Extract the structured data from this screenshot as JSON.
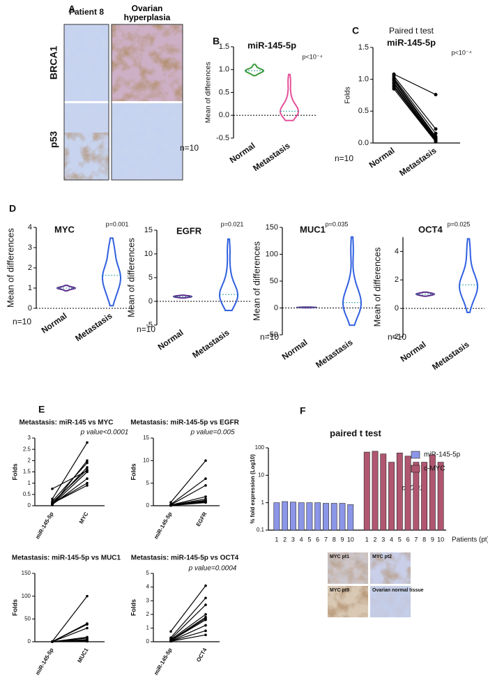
{
  "panel_a": {
    "label": "A",
    "columns": [
      "Patient 8",
      "Ovarian hyperplasia"
    ],
    "rows": [
      "BRCA1",
      "p53"
    ]
  },
  "chart_data": [
    {
      "type": "violin",
      "panel": "B",
      "title": "miR-145-5p",
      "annotation": "p<10⁻⁴",
      "note": "n=10",
      "ylabel": "Mean of differences",
      "categories": [
        "Normal",
        "Metastasis"
      ],
      "colors": [
        "#3a9a3a",
        "#e5509a"
      ],
      "values": [
        [
          0.9,
          0.93,
          0.95,
          0.96,
          0.97,
          0.98,
          0.99,
          1.0,
          1.02,
          1.08
        ],
        [
          0.75,
          0.4,
          0.2,
          0.12,
          0.1,
          0.08,
          0.06,
          0.05,
          0.04,
          0.03
        ]
      ],
      "ylim": [
        -0.5,
        1.5
      ],
      "yticks": [
        -0.5,
        {
          "value": 0,
          "label": "0.0"
        },
        0.5,
        {
          "value": 1,
          "label": "1.0"
        },
        1.5
      ],
      "reference_line": 0
    },
    {
      "type": "paired",
      "panel": "C",
      "subtitle": "Paired t test",
      "title": "miR-145-5p",
      "annotation": "p<10⁻⁴",
      "note": "n=10",
      "ylabel": "Folds",
      "categories": [
        "Normal",
        "Metastasis"
      ],
      "color": "#000000",
      "values": [
        [
          1.08,
          1.05,
          1.02,
          1.0,
          0.98,
          0.95,
          0.93,
          0.9,
          0.88,
          0.85
        ],
        [
          0.76,
          0.22,
          0.15,
          0.1,
          0.08,
          0.06,
          0.05,
          0.04,
          0.03,
          0.02
        ]
      ],
      "ylim": [
        0,
        1.5
      ],
      "yticks": [
        {
          "value": 0,
          "label": "0.0"
        },
        0.5,
        {
          "value": 1,
          "label": "1.0"
        },
        1.5
      ]
    },
    {
      "type": "violin",
      "panel": "D",
      "title": "MYC",
      "annotation": "p=0.001",
      "note": "n=10",
      "ylabel": "Mean of differences",
      "categories": [
        "Normal",
        "Metastasis"
      ],
      "colors": [
        "#5a2a8a",
        "#2f5fe0"
      ],
      "values": [
        [
          0.9,
          0.95,
          0.97,
          0.98,
          1.0,
          1.0,
          1.02,
          1.03,
          1.05,
          1.1
        ],
        [
          0.6,
          0.9,
          1.1,
          1.4,
          1.6,
          1.65,
          1.7,
          2.0,
          2.6,
          3.0
        ]
      ],
      "ylim": [
        0,
        4
      ],
      "yticks": [
        0,
        1,
        2,
        3,
        4
      ],
      "reference_line": 0
    },
    {
      "type": "violin",
      "title": "EGFR",
      "annotation": "p=0.021",
      "note": "n=10",
      "ylabel": "Mean of differences",
      "categories": [
        "Normal",
        "Metastasis"
      ],
      "colors": [
        "#5a2a8a",
        "#2f5fe0"
      ],
      "values": [
        [
          0.8,
          0.85,
          0.9,
          0.95,
          1.0,
          1.0,
          1.05,
          1.1,
          1.15,
          1.2
        ],
        [
          0.2,
          0.5,
          0.8,
          1.0,
          1.3,
          1.6,
          2.0,
          3.0,
          6.0,
          11.0
        ]
      ],
      "ylim": [
        -5,
        15
      ],
      "yticks": [
        -5,
        0,
        5,
        10,
        15
      ],
      "reference_line": 0
    },
    {
      "type": "violin",
      "title": "MUC1",
      "annotation": "p=0.035",
      "note": "n=10",
      "ylabel": "Mean of differences",
      "categories": [
        "Normal",
        "Metastasis"
      ],
      "colors": [
        "#5a2a8a",
        "#2f5fe0"
      ],
      "values": [
        [
          0.5,
          0.6,
          0.8,
          0.9,
          1.0,
          1.0,
          1.1,
          1.2,
          1.4,
          1.5
        ],
        [
          -10,
          -2,
          2,
          5,
          8,
          12,
          18,
          30,
          45,
          110
        ]
      ],
      "ylim": [
        -50,
        150
      ],
      "yticks": [
        -50,
        0,
        50,
        100,
        150
      ],
      "reference_line": 0
    },
    {
      "type": "violin",
      "title": "OCT4",
      "annotation": "p=0.025",
      "note": "n=10",
      "ylabel": "Mean of differences",
      "categories": [
        "Normal",
        "Metastasis"
      ],
      "colors": [
        "#5a2a8a",
        "#2f5fe0"
      ],
      "values": [
        [
          0.9,
          0.93,
          0.95,
          0.98,
          1.0,
          1.0,
          1.02,
          1.05,
          1.07,
          1.1
        ],
        [
          0.4,
          0.9,
          1.2,
          1.5,
          1.6,
          1.7,
          1.8,
          2.2,
          2.9,
          4.2
        ]
      ],
      "ylim": [
        -2,
        5
      ],
      "yticks": [
        -2,
        0,
        2,
        4
      ],
      "reference_line": 0
    },
    {
      "type": "paired",
      "panel": "E",
      "title": "Metastasis: miR-145 vs MYC",
      "annotation": "p value<0.0001",
      "ylabel": "Folds",
      "categories": [
        "miR-145-5p",
        "MYC"
      ],
      "color": "#000000",
      "values": [
        [
          0.75,
          0.3,
          0.2,
          0.15,
          0.1,
          0.1,
          0.08,
          0.05,
          0.05,
          0.03
        ],
        [
          1.55,
          2.8,
          1.9,
          1.6,
          1.0,
          0.9,
          1.7,
          1.5,
          1.2,
          2.0
        ]
      ],
      "ylim": [
        0,
        3
      ],
      "yticks": [
        0,
        0.5,
        1,
        1.5,
        2,
        2.5,
        3
      ]
    },
    {
      "type": "paired",
      "title": "Metastasis: miR-145-5p vs EGFR",
      "annotation": "p value=0.005",
      "ylabel": "Folds",
      "categories": [
        "miR-145-5p",
        "EGFR"
      ],
      "color": "#000000",
      "values": [
        [
          0.75,
          0.3,
          0.2,
          0.15,
          0.1,
          0.1,
          0.08,
          0.05,
          0.05,
          0.03
        ],
        [
          10,
          6,
          4.5,
          2,
          1.5,
          1.2,
          1.0,
          0.9,
          0.8,
          0.7
        ]
      ],
      "ylim": [
        0,
        15
      ],
      "yticks": [
        0,
        5,
        10,
        15
      ]
    },
    {
      "type": "paired",
      "title": "Metastasis: miR-145-5p vs MUC1",
      "ylabel": "Folds",
      "categories": [
        "miR-145-5p",
        "MUC1"
      ],
      "color": "#000000",
      "values": [
        [
          0.75,
          0.3,
          0.2,
          0.15,
          0.1,
          0.1,
          0.08,
          0.05,
          0.05,
          0.03
        ],
        [
          100,
          40,
          38,
          30,
          10,
          8,
          5,
          3,
          2,
          1
        ]
      ],
      "ylim": [
        0,
        150
      ],
      "yticks": [
        0,
        50,
        100,
        150
      ]
    },
    {
      "type": "paired",
      "title": "Metastasis: miR-145-5p vs OCT4",
      "annotation": "p value=0.0004",
      "ylabel": "Folds",
      "categories": [
        "miR-145-5p",
        "OCT4"
      ],
      "color": "#000000",
      "values": [
        [
          0.75,
          0.3,
          0.2,
          0.15,
          0.1,
          0.1,
          0.08,
          0.05,
          0.05,
          0.03
        ],
        [
          4.1,
          3.2,
          2.7,
          2.0,
          1.8,
          1.7,
          1.6,
          1.2,
          0.8,
          0.5
        ]
      ],
      "ylim": [
        0,
        5
      ],
      "yticks": [
        0,
        1,
        2,
        3,
        4,
        5
      ]
    },
    {
      "type": "bar",
      "panel": "F",
      "title": "paired t test",
      "annotation": "p<0.01",
      "ylabel": "% fold expression (Log10)",
      "xlabel": "Patients (pt)",
      "categories": [
        "1",
        "2",
        "3",
        "4",
        "5",
        "6",
        "7",
        "8",
        "9",
        "10"
      ],
      "series": [
        {
          "name": "miR-145-5p",
          "color": "#8c96e8",
          "values": [
            1.0,
            1.1,
            1.05,
            1.0,
            1.0,
            1.0,
            0.95,
            0.95,
            0.95,
            0.85
          ]
        },
        {
          "name": "c-MYC",
          "color": "#b05670",
          "values": [
            70,
            75,
            60,
            30,
            65,
            50,
            30,
            30,
            55,
            30
          ]
        }
      ],
      "log_scale": true,
      "legend": "right",
      "ylim": [
        0.1,
        100
      ],
      "yticks": [
        0.1,
        1,
        10,
        100
      ]
    }
  ],
  "panel_f_images": {
    "captions": [
      "MYC pt1",
      "MYC pt2",
      "MYC pt9",
      "Ovarian normal tissue"
    ]
  }
}
